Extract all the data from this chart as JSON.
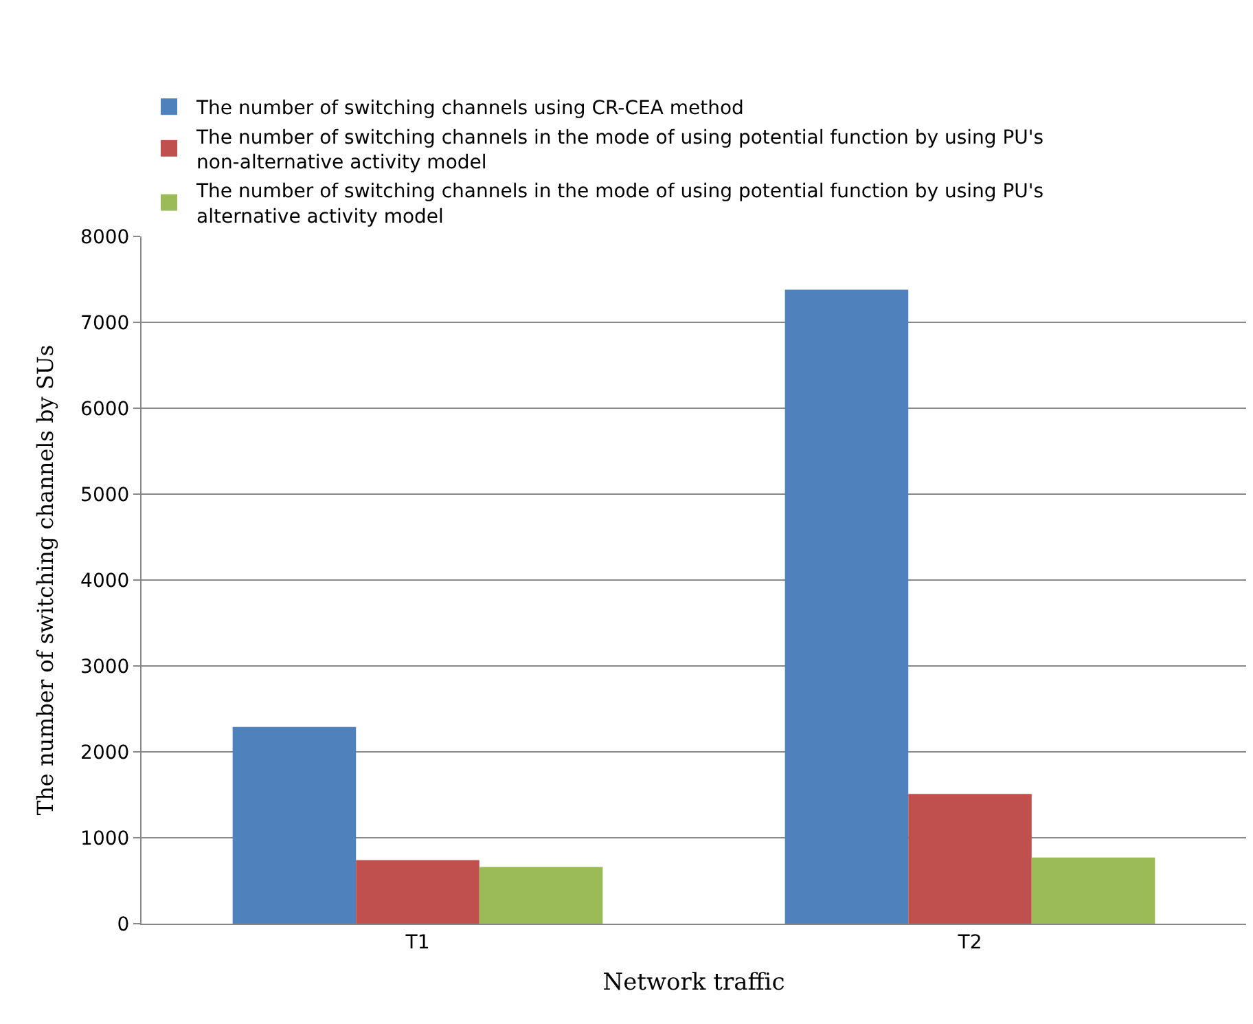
{
  "chart_data": {
    "type": "bar",
    "xlabel": "Network traffic",
    "ylabel": "The number of switching channels by SUs",
    "categories": [
      "T1",
      "T2"
    ],
    "series": [
      {
        "name": "The number of switching channels using CR-CEA method",
        "color": "#4f81bd",
        "values": [
          2290,
          7380
        ]
      },
      {
        "name": "The number of switching channels in the mode of using potential function by using PU's non-alternative activity model",
        "color": "#c0504d",
        "values": [
          740,
          1510
        ]
      },
      {
        "name": "The number of switching channels in the mode of using potential function by using PU's alternative activity model",
        "color": "#9bbb59",
        "values": [
          660,
          770
        ]
      }
    ],
    "ylim": [
      0,
      8000
    ],
    "yticks": [
      0,
      1000,
      2000,
      3000,
      4000,
      5000,
      6000,
      7000,
      8000
    ],
    "grid": "y",
    "legend": "top"
  }
}
